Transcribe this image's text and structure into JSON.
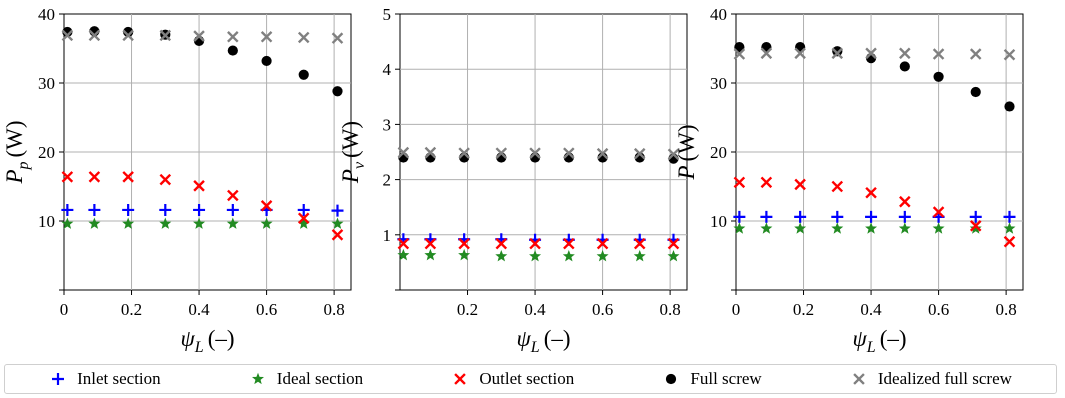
{
  "chart_data": [
    {
      "type": "scatter",
      "ylabel_main": "P",
      "ylabel_sub": "p",
      "ylabel_unit": "(W)",
      "xlabel_main": "ψ",
      "xlabel_sub": "L",
      "xlabel_unit": "(–)",
      "xlim": [
        0,
        0.85
      ],
      "ylim": [
        0,
        40
      ],
      "xticks": [
        "0",
        "0.2",
        "0.4",
        "0.6",
        "0.8"
      ],
      "yticks": [
        "10",
        "20",
        "30",
        "40"
      ],
      "grid": true,
      "series": [
        {
          "key": "inlet",
          "x": [
            0.01,
            0.09,
            0.19,
            0.3,
            0.4,
            0.5,
            0.6,
            0.71,
            0.81
          ],
          "y": [
            11.6,
            11.6,
            11.6,
            11.6,
            11.6,
            11.6,
            11.6,
            11.6,
            11.5
          ]
        },
        {
          "key": "ideal",
          "x": [
            0.01,
            0.09,
            0.19,
            0.3,
            0.4,
            0.5,
            0.6,
            0.71,
            0.81
          ],
          "y": [
            9.6,
            9.6,
            9.6,
            9.6,
            9.6,
            9.6,
            9.6,
            9.6,
            9.6
          ]
        },
        {
          "key": "outlet",
          "x": [
            0.01,
            0.09,
            0.19,
            0.3,
            0.4,
            0.5,
            0.6,
            0.71,
            0.81
          ],
          "y": [
            16.4,
            16.4,
            16.4,
            16.0,
            15.1,
            13.7,
            12.2,
            10.4,
            8.0
          ]
        },
        {
          "key": "full",
          "x": [
            0.01,
            0.09,
            0.19,
            0.3,
            0.4,
            0.5,
            0.6,
            0.71,
            0.81
          ],
          "y": [
            37.4,
            37.5,
            37.4,
            37.0,
            36.1,
            34.7,
            33.2,
            31.2,
            28.8
          ]
        },
        {
          "key": "idealized",
          "x": [
            0.01,
            0.09,
            0.19,
            0.3,
            0.4,
            0.5,
            0.6,
            0.71,
            0.81
          ],
          "y": [
            36.9,
            36.9,
            36.9,
            36.9,
            36.8,
            36.7,
            36.7,
            36.6,
            36.5
          ]
        }
      ]
    },
    {
      "type": "scatter",
      "ylabel_main": "P",
      "ylabel_sub": "v",
      "ylabel_unit": "(W)",
      "xlabel_main": "ψ",
      "xlabel_sub": "L",
      "xlabel_unit": "(–)",
      "xlim": [
        0,
        0.85
      ],
      "ylim": [
        0,
        5
      ],
      "xticks": [
        "0.2",
        "0.4",
        "0.6",
        "0.8"
      ],
      "yticks": [
        "1",
        "2",
        "3",
        "4",
        "5"
      ],
      "grid": true,
      "series": [
        {
          "key": "inlet",
          "x": [
            0.01,
            0.09,
            0.19,
            0.3,
            0.4,
            0.5,
            0.6,
            0.71,
            0.81
          ],
          "y": [
            0.92,
            0.92,
            0.92,
            0.92,
            0.91,
            0.91,
            0.91,
            0.91,
            0.91
          ]
        },
        {
          "key": "ideal",
          "x": [
            0.01,
            0.09,
            0.19,
            0.3,
            0.4,
            0.5,
            0.6,
            0.71,
            0.81
          ],
          "y": [
            0.63,
            0.63,
            0.63,
            0.61,
            0.61,
            0.61,
            0.61,
            0.61,
            0.61
          ]
        },
        {
          "key": "outlet",
          "x": [
            0.01,
            0.09,
            0.19,
            0.3,
            0.4,
            0.5,
            0.6,
            0.71,
            0.81
          ],
          "y": [
            0.84,
            0.84,
            0.84,
            0.84,
            0.84,
            0.84,
            0.84,
            0.84,
            0.84
          ]
        },
        {
          "key": "full",
          "x": [
            0.01,
            0.09,
            0.19,
            0.3,
            0.4,
            0.5,
            0.6,
            0.71,
            0.81
          ],
          "y": [
            2.4,
            2.4,
            2.4,
            2.4,
            2.4,
            2.4,
            2.4,
            2.4,
            2.38
          ]
        },
        {
          "key": "idealized",
          "x": [
            0.01,
            0.09,
            0.19,
            0.3,
            0.4,
            0.5,
            0.6,
            0.71,
            0.81
          ],
          "y": [
            2.49,
            2.49,
            2.48,
            2.48,
            2.48,
            2.48,
            2.47,
            2.47,
            2.46
          ]
        }
      ]
    },
    {
      "type": "scatter",
      "ylabel_main": "P",
      "ylabel_sub": "",
      "ylabel_unit": "(W)",
      "xlabel_main": "ψ",
      "xlabel_sub": "L",
      "xlabel_unit": "(–)",
      "xlim": [
        0,
        0.85
      ],
      "ylim": [
        0,
        40
      ],
      "xticks": [
        "0",
        "0.2",
        "0.4",
        "0.6",
        "0.8"
      ],
      "yticks": [
        "10",
        "20",
        "30",
        "40"
      ],
      "grid": true,
      "series": [
        {
          "key": "inlet",
          "x": [
            0.01,
            0.09,
            0.19,
            0.3,
            0.4,
            0.5,
            0.6,
            0.71,
            0.81
          ],
          "y": [
            10.6,
            10.6,
            10.6,
            10.6,
            10.6,
            10.6,
            10.6,
            10.6,
            10.6
          ]
        },
        {
          "key": "ideal",
          "x": [
            0.01,
            0.09,
            0.19,
            0.3,
            0.4,
            0.5,
            0.6,
            0.71,
            0.81
          ],
          "y": [
            8.9,
            8.9,
            8.9,
            8.9,
            8.9,
            8.9,
            8.9,
            8.9,
            8.9
          ]
        },
        {
          "key": "outlet",
          "x": [
            0.01,
            0.09,
            0.19,
            0.3,
            0.4,
            0.5,
            0.6,
            0.71,
            0.81
          ],
          "y": [
            15.6,
            15.6,
            15.3,
            15.0,
            14.1,
            12.8,
            11.3,
            9.3,
            7.0
          ]
        },
        {
          "key": "full",
          "x": [
            0.01,
            0.09,
            0.19,
            0.3,
            0.4,
            0.5,
            0.6,
            0.71,
            0.81
          ],
          "y": [
            35.2,
            35.2,
            35.2,
            34.6,
            33.6,
            32.4,
            30.9,
            28.7,
            26.6
          ]
        },
        {
          "key": "idealized",
          "x": [
            0.01,
            0.09,
            0.19,
            0.3,
            0.4,
            0.5,
            0.6,
            0.71,
            0.81
          ],
          "y": [
            34.2,
            34.3,
            34.3,
            34.3,
            34.3,
            34.3,
            34.2,
            34.2,
            34.1
          ]
        }
      ]
    }
  ],
  "legend": [
    {
      "key": "inlet",
      "label": "Inlet section",
      "color": "#0000ff",
      "marker": "plus"
    },
    {
      "key": "ideal",
      "label": "Ideal section",
      "color": "#228b22",
      "marker": "star"
    },
    {
      "key": "outlet",
      "label": "Outlet section",
      "color": "#ff0000",
      "marker": "x"
    },
    {
      "key": "full",
      "label": "Full screw",
      "color": "#000000",
      "marker": "circle"
    },
    {
      "key": "idealized",
      "label": "Idealized full screw",
      "color": "#808080",
      "marker": "x"
    }
  ],
  "legend_placement": "bottom"
}
